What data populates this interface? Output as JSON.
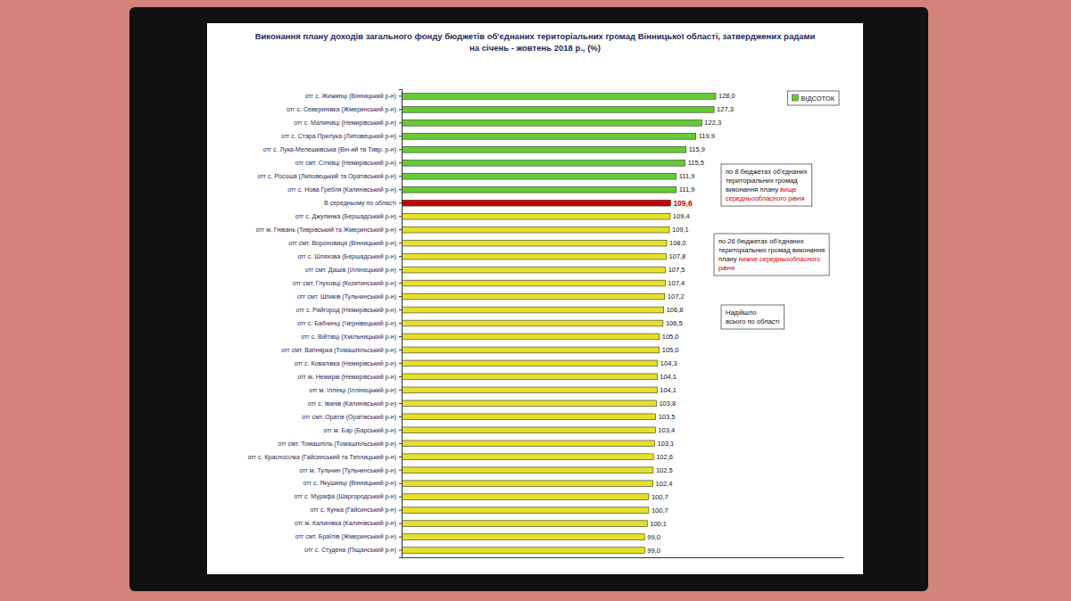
{
  "chart_data": {
    "type": "bar",
    "orientation": "horizontal",
    "title": "Виконання плану доходів загального фонду бюджетів об'єднаних територіальних громад Вінницької області, затверджених радами на січень - жовтень 2018 р., (%)",
    "categories": [
      "отг с. Жижинці (Вінницький р-н)",
      "отг с. Северинівка (Жмеринський р-н)",
      "отг с. Малинівці (Немирівський р-н)",
      "отг с. Стара Прилука (Липовецький р-н)",
      "отг с. Лука-Мелешківська (Він-ий та Тивр. р-н)",
      "отг смт. Сітківці (Немирівський р-н)",
      "отг с. Росоша (Липовецький та Оратівський р-н)",
      "отг с. Нова Гребля (Калинівський р-н)",
      "В середньому по області",
      "отг с. Джулинка (Бершадський р-н)",
      "отг м. Гнівань (Тиврівський та Жмеринський р-н)",
      "отг смт. Вороновиця (Вінницький р-н)",
      "отг с. Шляхова (Бершадський р-н)",
      "отг смт. Дашів (Іллінецький р-н)",
      "отг смт. Глуховці (Козятинський р-н)",
      "отг смт. Шпиків (Тульчинський р-н)",
      "отг с. Райгород (Немирівський р-н)",
      "отг с. Бабчинці (Чернівецький р-н)",
      "отг с. Війтівці (Хмільницький р-н)",
      "отг смт. Вапнярка (Томашпільський р-н)",
      "отг с. Ковалівка (Немирівський р-н)",
      "отг м. Немирів (Немирівський р-н)",
      "отг м. Іллінці (Іллінецький р-н)",
      "отг с. Іванів (Калинівський р-н)",
      "отг смт. Оратів (Оратівський р-н)",
      "отг м. Бар (Барський р-н)",
      "отг смт. Томашпіль (Томашпільський р-н)",
      "отг с. Красносілка (Гайсинський та Теплицький р-н)",
      "отг м. Тульчин (Тульчинський р-н)",
      "отг с. Якушинці (Вінницький р-н)",
      "отг с. Мурафа (Шаргородський р-н)",
      "отг с. Кунка (Гайсинський р-н)",
      "отг м. Калинівка (Калинівський р-н)",
      "отг смт. Браїлів (Жмеринський р-н)",
      "отг с. Студена (Піщанський р-н)"
    ],
    "series": [
      {
        "name": "ВІДСОТОК",
        "color": "#66cc33",
        "values": [
          128.0,
          127.3,
          122.3,
          119.9,
          115.9,
          115.5,
          111.9,
          111.9,
          109.6,
          109.4,
          109.1,
          108.0,
          107.8,
          107.5,
          107.4,
          107.2,
          106.8,
          106.5,
          105.0,
          105.0,
          104.3,
          104.1,
          104.1,
          103.8,
          103.5,
          103.4,
          103.1,
          102.6,
          102.5,
          102.4,
          100.7,
          100.7,
          100.1,
          99.0,
          99.0
        ],
        "value_labels": [
          "128,0",
          "127,3",
          "122,3",
          "119,9",
          "115,9",
          "115,5",
          "111,9",
          "111,9",
          "109,6",
          "109,4",
          "109,1",
          "108,0",
          "107,8",
          "107,5",
          "107,4",
          "107,2",
          "106,8",
          "106,5",
          "105,0",
          "105,0",
          "104,3",
          "104,1",
          "104,1",
          "103,8",
          "103,5",
          "103,4",
          "103,1",
          "102,6",
          "102,5",
          "102,4",
          "100,7",
          "100,7",
          "100,1",
          "99,0",
          "99,0"
        ],
        "colors": [
          "#66cc33",
          "#66cc33",
          "#66cc33",
          "#66cc33",
          "#66cc33",
          "#66cc33",
          "#66cc33",
          "#66cc33",
          "#cc0000",
          "#e6e02a",
          "#e6e02a",
          "#e6e02a",
          "#e6e02a",
          "#e6e02a",
          "#e6e02a",
          "#e6e02a",
          "#e6e02a",
          "#e6e02a",
          "#e6e02a",
          "#e6e02a",
          "#e6e02a",
          "#e6e02a",
          "#e6e02a",
          "#e6e02a",
          "#e6e02a",
          "#e6e02a",
          "#e6e02a",
          "#e6e02a",
          "#e6e02a",
          "#e6e02a",
          "#e6e02a",
          "#e6e02a",
          "#e6e02a",
          "#e6e02a",
          "#e6e02a"
        ]
      }
    ],
    "xlim": [
      0,
      180
    ],
    "tick_labels": "y",
    "data_labels": true,
    "legend": "upper right",
    "annotations": [
      {
        "lines": [
          [
            {
              "text": "по 8 бюджетах об'єднаних"
            }
          ],
          [
            {
              "text": "територіальних громад"
            }
          ],
          [
            {
              "text": "виконання плану "
            },
            {
              "text": "вище",
              "color": "#cc0000"
            }
          ],
          [
            {
              "text": "середньообласного рівня",
              "color": "#cc0000"
            }
          ]
        ]
      },
      {
        "lines": [
          [
            {
              "text": "по 26 бюджетах об'єднаних"
            }
          ],
          [
            {
              "text": "територіальних громад виконання"
            }
          ],
          [
            {
              "text": "плану "
            },
            {
              "text": "нижче середньообласного",
              "color": "#cc0000"
            }
          ],
          [
            {
              "text": "рівня",
              "color": "#cc0000"
            }
          ]
        ]
      },
      {
        "lines": [
          [
            {
              "text": "Надійшло"
            }
          ],
          [
            {
              "text": "всього по області"
            }
          ]
        ]
      }
    ]
  }
}
